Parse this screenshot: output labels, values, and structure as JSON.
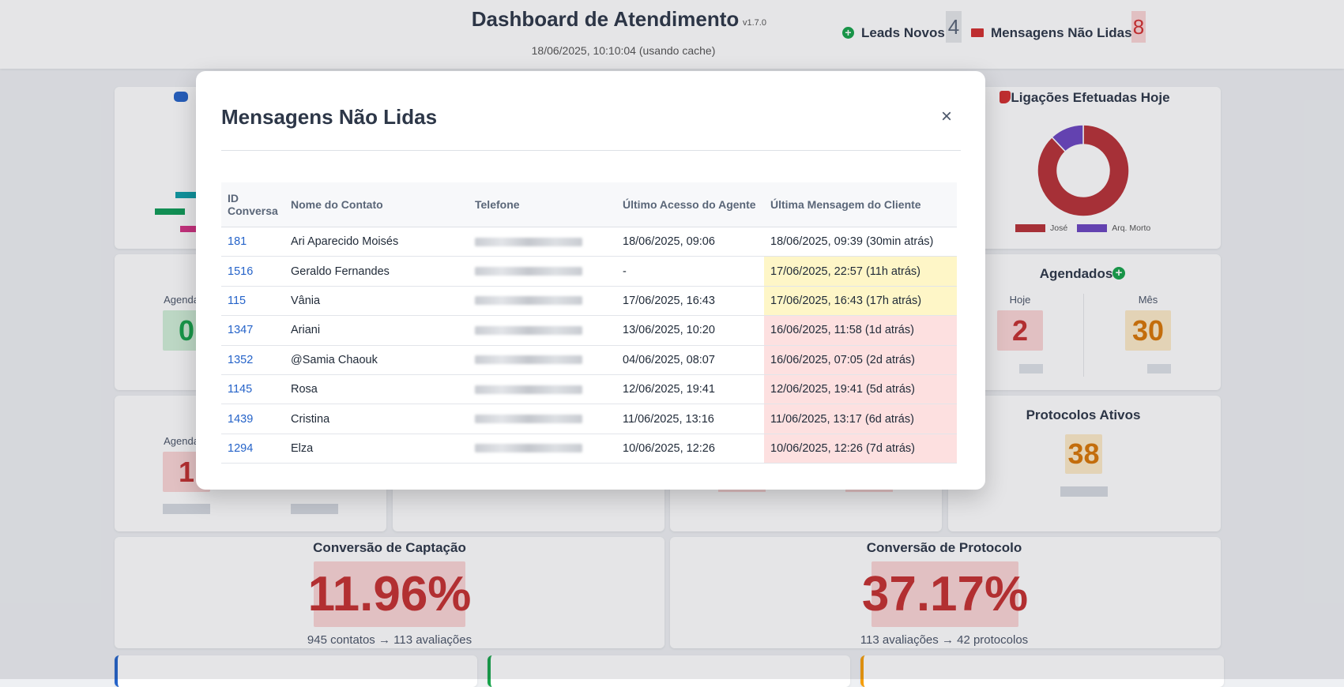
{
  "header": {
    "title": "Dashboard de Atendimento",
    "version": "v1.7.0",
    "timestamp": "18/06/2025, 10:10:04 (usando cache)",
    "leads_label": "Leads Novos",
    "leads_count": "4",
    "unread_label": "Mensagens Não Lidas",
    "unread_count": "8"
  },
  "chart_data": {
    "type": "donut",
    "title": "Ligações Efetuadas Hoje",
    "categories": [
      "José",
      "Arq. Morto"
    ],
    "values": [
      88,
      12
    ],
    "colors": [
      "#b83237",
      "#6b46c1"
    ]
  },
  "scheduled": {
    "title": "Agendados",
    "today_label": "Hoje",
    "today_value": "2",
    "month_label": "Mês",
    "month_value": "30"
  },
  "protocols": {
    "title": "Protocolos Ativos",
    "value": "38"
  },
  "left_cards": {
    "label_a": "Agendados",
    "value_a": "0",
    "label_b": "Agendados",
    "value_b": "1"
  },
  "capture_conversion": {
    "title": "Conversão de Captação",
    "value": "11.96%",
    "detail": "945 contatos → 113 avaliações"
  },
  "protocol_conversion": {
    "title": "Conversão de Protocolo",
    "value": "37.17%",
    "detail": "113 avaliações → 42 protocolos"
  },
  "modal": {
    "title": "Mensagens Não Lidas",
    "close": "×",
    "table": {
      "headers": [
        "ID Conversa",
        "Nome do Contato",
        "Telefone",
        "Último Acesso do Agente",
        "Última Mensagem do Cliente"
      ],
      "rows": [
        {
          "id": "181",
          "name": "Ari Aparecido Moisés",
          "access": "18/06/2025, 09:06",
          "last": "18/06/2025, 09:39 (30min atrás)",
          "color": null
        },
        {
          "id": "1516",
          "name": "Geraldo Fernandes",
          "access": "-",
          "last": "17/06/2025, 22:57 (11h atrás)",
          "color": "#fef6c7"
        },
        {
          "id": "115",
          "name": "Vânia",
          "access": "17/06/2025, 16:43",
          "last": "17/06/2025, 16:43 (17h atrás)",
          "color": "#fef6c7"
        },
        {
          "id": "1347",
          "name": "Ariani",
          "access": "13/06/2025, 10:20",
          "last": "16/06/2025, 11:58 (1d atrás)",
          "color": "#fde0e0"
        },
        {
          "id": "1352",
          "name": "@Samia Chaouk",
          "access": "04/06/2025, 08:07",
          "last": "16/06/2025, 07:05 (2d atrás)",
          "color": "#fde0e0"
        },
        {
          "id": "1145",
          "name": "Rosa",
          "access": "12/06/2025, 19:41",
          "last": "12/06/2025, 19:41 (5d atrás)",
          "color": "#fde0e0"
        },
        {
          "id": "1439",
          "name": "Cristina",
          "access": "11/06/2025, 13:16",
          "last": "11/06/2025, 13:17 (6d atrás)",
          "color": "#fde0e0"
        },
        {
          "id": "1294",
          "name": "Elza",
          "access": "10/06/2025, 12:26",
          "last": "10/06/2025, 12:26 (7d atrás)",
          "color": "#fde0e0"
        }
      ]
    }
  }
}
